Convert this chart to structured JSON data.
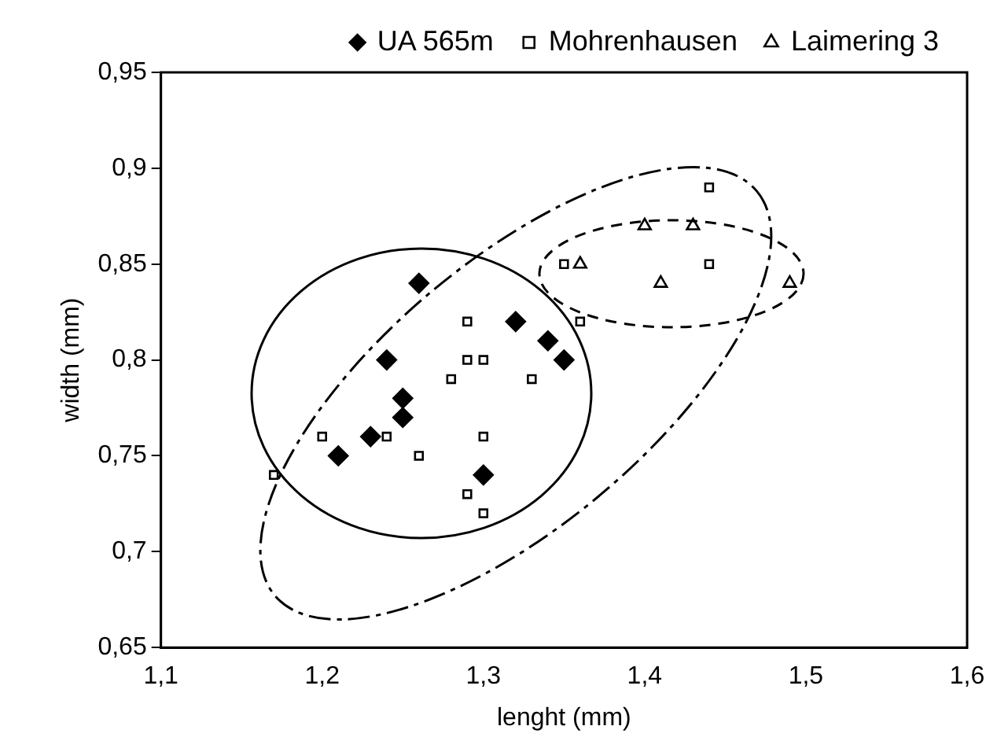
{
  "chart_data": {
    "type": "scatter",
    "xlabel": "lenght (mm)",
    "ylabel": "width (mm)",
    "legend": "top",
    "grid": false,
    "xlim": [
      1.1,
      1.6
    ],
    "xticks": [
      {
        "value": 1.1,
        "label": "1,1"
      },
      {
        "value": 1.2,
        "label": "1,2"
      },
      {
        "value": 1.3,
        "label": "1,3"
      },
      {
        "value": 1.4,
        "label": "1,4"
      },
      {
        "value": 1.5,
        "label": "1,5"
      },
      {
        "value": 1.6,
        "label": "1,6"
      }
    ],
    "ylim": [
      0.65,
      0.95
    ],
    "yticks": [
      {
        "value": 0.65,
        "label": "0,65"
      },
      {
        "value": 0.7,
        "label": "0,7"
      },
      {
        "value": 0.75,
        "label": "0,75"
      },
      {
        "value": 0.8,
        "label": "0,8"
      },
      {
        "value": 0.85,
        "label": "0,85"
      },
      {
        "value": 0.9,
        "label": "0,9"
      },
      {
        "value": 0.95,
        "label": "0,95"
      }
    ],
    "series": [
      {
        "name": "UA 565m",
        "color": "#000000",
        "marker": "diamond",
        "x": [
          1.26,
          1.24,
          1.32,
          1.34,
          1.35,
          1.25,
          1.25,
          1.23,
          1.21,
          1.3
        ],
        "values": [
          0.84,
          0.8,
          0.82,
          0.81,
          0.8,
          0.78,
          0.77,
          0.76,
          0.75,
          0.74
        ]
      },
      {
        "name": "Mohrenhausen",
        "color": "#000000",
        "marker": "square",
        "x": [
          1.17,
          1.2,
          1.24,
          1.26,
          1.28,
          1.29,
          1.29,
          1.3,
          1.33,
          1.3,
          1.29,
          1.3,
          1.35,
          1.36,
          1.44,
          1.44
        ],
        "values": [
          0.74,
          0.76,
          0.76,
          0.75,
          0.79,
          0.82,
          0.8,
          0.8,
          0.79,
          0.76,
          0.73,
          0.72,
          0.85,
          0.82,
          0.85,
          0.89
        ]
      },
      {
        "name": "Laimering 3",
        "color": "#000000",
        "marker": "triangle",
        "x": [
          1.36,
          1.4,
          1.43,
          1.41,
          1.49
        ],
        "values": [
          0.85,
          0.87,
          0.87,
          0.84,
          0.84
        ]
      }
    ]
  }
}
